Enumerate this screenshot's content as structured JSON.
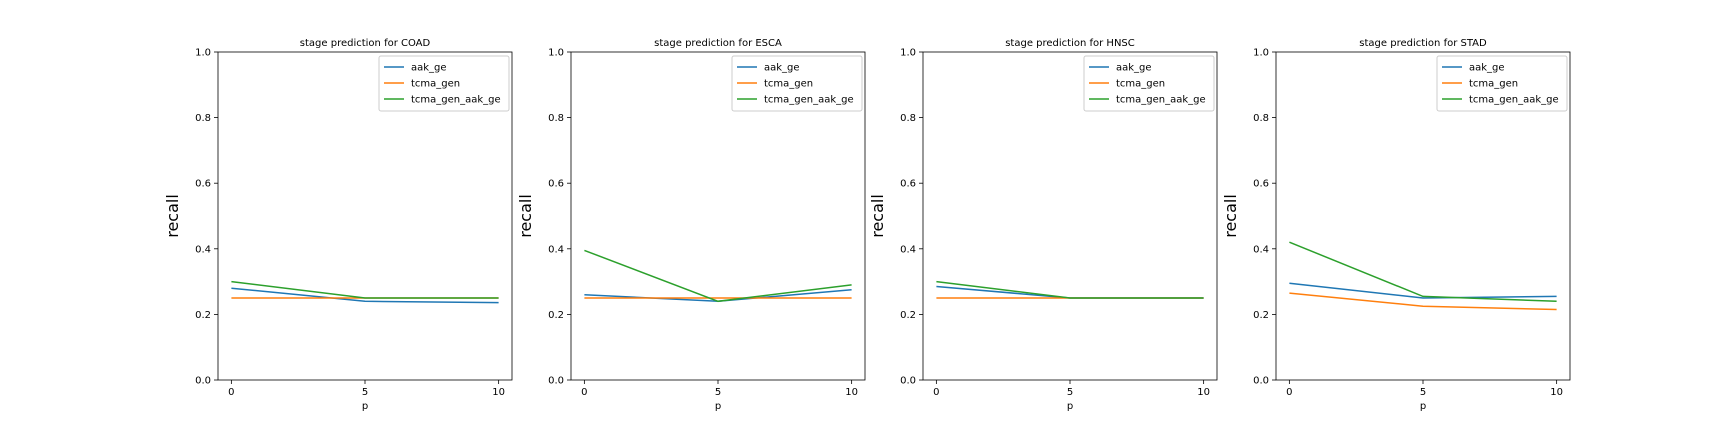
{
  "chart_data": [
    {
      "type": "line",
      "title": "stage prediction for COAD",
      "xlabel": "p",
      "ylabel": "recall",
      "x": [
        0,
        5,
        10
      ],
      "xticks": [
        "0",
        "5",
        "10"
      ],
      "yticks": [
        "0.0",
        "0.2",
        "0.4",
        "0.6",
        "0.8",
        "1.0"
      ],
      "xlim": [
        -0.5,
        10.5
      ],
      "ylim": [
        0,
        1
      ],
      "legend": "top-right",
      "series": [
        {
          "name": "aak_ge",
          "values": [
            0.28,
            0.24,
            0.236
          ],
          "color": "#1f77b4"
        },
        {
          "name": "tcma_gen",
          "values": [
            0.25,
            0.25,
            0.25
          ],
          "color": "#ff7f0e"
        },
        {
          "name": "tcma_gen_aak_ge",
          "values": [
            0.3,
            0.25,
            0.25
          ],
          "color": "#2ca02c"
        }
      ]
    },
    {
      "type": "line",
      "title": "stage prediction for ESCA",
      "xlabel": "p",
      "ylabel": "recall",
      "x": [
        0,
        5,
        10
      ],
      "xticks": [
        "0",
        "5",
        "10"
      ],
      "yticks": [
        "0.0",
        "0.2",
        "0.4",
        "0.6",
        "0.8",
        "1.0"
      ],
      "xlim": [
        -0.5,
        10.5
      ],
      "ylim": [
        0,
        1
      ],
      "legend": "top-right",
      "series": [
        {
          "name": "aak_ge",
          "values": [
            0.26,
            0.24,
            0.275
          ],
          "color": "#1f77b4"
        },
        {
          "name": "tcma_gen",
          "values": [
            0.25,
            0.25,
            0.25
          ],
          "color": "#ff7f0e"
        },
        {
          "name": "tcma_gen_aak_ge",
          "values": [
            0.395,
            0.24,
            0.29
          ],
          "color": "#2ca02c"
        }
      ]
    },
    {
      "type": "line",
      "title": "stage prediction for HNSC",
      "xlabel": "p",
      "ylabel": "recall",
      "x": [
        0,
        5,
        10
      ],
      "xticks": [
        "0",
        "5",
        "10"
      ],
      "yticks": [
        "0.0",
        "0.2",
        "0.4",
        "0.6",
        "0.8",
        "1.0"
      ],
      "xlim": [
        -0.5,
        10.5
      ],
      "ylim": [
        0,
        1
      ],
      "legend": "top-right",
      "series": [
        {
          "name": "aak_ge",
          "values": [
            0.285,
            0.25,
            0.25
          ],
          "color": "#1f77b4"
        },
        {
          "name": "tcma_gen",
          "values": [
            0.25,
            0.25,
            0.25
          ],
          "color": "#ff7f0e"
        },
        {
          "name": "tcma_gen_aak_ge",
          "values": [
            0.3,
            0.25,
            0.25
          ],
          "color": "#2ca02c"
        }
      ]
    },
    {
      "type": "line",
      "title": "stage prediction for STAD",
      "xlabel": "p",
      "ylabel": "recall",
      "x": [
        0,
        5,
        10
      ],
      "xticks": [
        "0",
        "5",
        "10"
      ],
      "yticks": [
        "0.0",
        "0.2",
        "0.4",
        "0.6",
        "0.8",
        "1.0"
      ],
      "xlim": [
        -0.5,
        10.5
      ],
      "ylim": [
        0,
        1
      ],
      "legend": "top-right",
      "series": [
        {
          "name": "aak_ge",
          "values": [
            0.295,
            0.25,
            0.255
          ],
          "color": "#1f77b4"
        },
        {
          "name": "tcma_gen",
          "values": [
            0.265,
            0.225,
            0.215
          ],
          "color": "#ff7f0e"
        },
        {
          "name": "tcma_gen_aak_ge",
          "values": [
            0.42,
            0.255,
            0.24
          ],
          "color": "#2ca02c"
        }
      ]
    }
  ]
}
